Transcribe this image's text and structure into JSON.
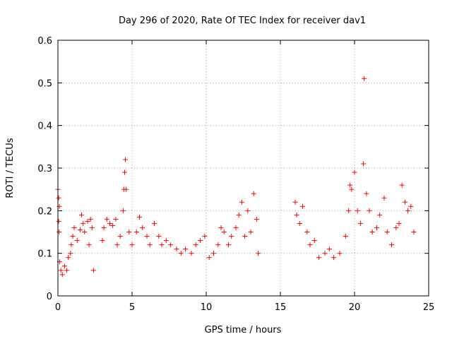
{
  "chart_data": {
    "type": "scatter",
    "title": "Day 296 of 2020, Rate Of TEC Index for receiver dav1",
    "xlabel": "GPS time / hours",
    "ylabel": "ROTI / TECUs",
    "xlim": [
      0,
      25
    ],
    "ylim": [
      0,
      0.6
    ],
    "xticks": [
      0,
      5,
      10,
      15,
      20,
      25
    ],
    "yticks": [
      0,
      0.1,
      0.2,
      0.3,
      0.4,
      0.5,
      0.6
    ],
    "xtick_labels": [
      "0",
      "5",
      "10",
      "15",
      "20",
      "25"
    ],
    "ytick_labels": [
      "0",
      "0.1",
      "0.2",
      "0.3",
      "0.4",
      "0.5",
      "0.6"
    ],
    "grid": true,
    "marker": "+",
    "color": "#ff0000",
    "series": [
      {
        "points": [
          [
            0.0,
            0.25
          ],
          [
            0.05,
            0.23
          ],
          [
            0.1,
            0.21
          ],
          [
            0.05,
            0.175
          ],
          [
            0.08,
            0.15
          ],
          [
            0.12,
            0.08
          ],
          [
            0.2,
            0.06
          ],
          [
            0.3,
            0.05
          ],
          [
            0.45,
            0.07
          ],
          [
            0.6,
            0.06
          ],
          [
            0.7,
            0.09
          ],
          [
            0.85,
            0.1
          ],
          [
            0.9,
            0.12
          ],
          [
            1.0,
            0.14
          ],
          [
            1.1,
            0.16
          ],
          [
            1.3,
            0.13
          ],
          [
            1.5,
            0.155
          ],
          [
            1.6,
            0.19
          ],
          [
            1.7,
            0.17
          ],
          [
            1.8,
            0.15
          ],
          [
            2.0,
            0.175
          ],
          [
            2.1,
            0.12
          ],
          [
            2.2,
            0.18
          ],
          [
            2.3,
            0.16
          ],
          [
            2.4,
            0.06
          ],
          [
            3.0,
            0.13
          ],
          [
            3.1,
            0.16
          ],
          [
            3.3,
            0.18
          ],
          [
            3.5,
            0.17
          ],
          [
            3.7,
            0.165
          ],
          [
            3.9,
            0.18
          ],
          [
            4.0,
            0.12
          ],
          [
            4.2,
            0.14
          ],
          [
            4.4,
            0.2
          ],
          [
            4.45,
            0.25
          ],
          [
            4.5,
            0.29
          ],
          [
            4.55,
            0.32
          ],
          [
            4.6,
            0.25
          ],
          [
            4.8,
            0.15
          ],
          [
            5.0,
            0.12
          ],
          [
            5.3,
            0.15
          ],
          [
            5.5,
            0.185
          ],
          [
            5.7,
            0.16
          ],
          [
            6.0,
            0.14
          ],
          [
            6.2,
            0.12
          ],
          [
            6.5,
            0.17
          ],
          [
            6.8,
            0.14
          ],
          [
            7.0,
            0.12
          ],
          [
            7.3,
            0.13
          ],
          [
            7.6,
            0.12
          ],
          [
            8.0,
            0.11
          ],
          [
            8.3,
            0.1
          ],
          [
            8.6,
            0.11
          ],
          [
            9.0,
            0.1
          ],
          [
            9.3,
            0.12
          ],
          [
            9.6,
            0.13
          ],
          [
            9.9,
            0.14
          ],
          [
            10.2,
            0.09
          ],
          [
            10.5,
            0.1
          ],
          [
            10.8,
            0.12
          ],
          [
            11.0,
            0.16
          ],
          [
            11.2,
            0.15
          ],
          [
            11.5,
            0.12
          ],
          [
            11.7,
            0.14
          ],
          [
            12.0,
            0.16
          ],
          [
            12.2,
            0.19
          ],
          [
            12.4,
            0.22
          ],
          [
            12.6,
            0.14
          ],
          [
            12.8,
            0.2
          ],
          [
            13.0,
            0.15
          ],
          [
            13.2,
            0.24
          ],
          [
            13.4,
            0.18
          ],
          [
            13.5,
            0.1
          ],
          [
            16.0,
            0.22
          ],
          [
            16.1,
            0.19
          ],
          [
            16.3,
            0.17
          ],
          [
            16.5,
            0.21
          ],
          [
            16.8,
            0.15
          ],
          [
            17.0,
            0.12
          ],
          [
            17.3,
            0.13
          ],
          [
            17.6,
            0.09
          ],
          [
            18.0,
            0.1
          ],
          [
            18.3,
            0.11
          ],
          [
            18.6,
            0.09
          ],
          [
            19.0,
            0.1
          ],
          [
            19.4,
            0.14
          ],
          [
            19.6,
            0.2
          ],
          [
            19.7,
            0.26
          ],
          [
            19.8,
            0.25
          ],
          [
            20.0,
            0.29
          ],
          [
            20.2,
            0.2
          ],
          [
            20.4,
            0.17
          ],
          [
            20.6,
            0.31
          ],
          [
            20.65,
            0.51
          ],
          [
            20.8,
            0.24
          ],
          [
            21.0,
            0.2
          ],
          [
            21.2,
            0.15
          ],
          [
            21.5,
            0.16
          ],
          [
            21.7,
            0.19
          ],
          [
            22.0,
            0.23
          ],
          [
            22.2,
            0.15
          ],
          [
            22.5,
            0.12
          ],
          [
            22.8,
            0.16
          ],
          [
            23.0,
            0.17
          ],
          [
            23.2,
            0.26
          ],
          [
            23.4,
            0.22
          ],
          [
            23.6,
            0.2
          ],
          [
            23.8,
            0.21
          ],
          [
            24.0,
            0.15
          ]
        ]
      }
    ]
  }
}
